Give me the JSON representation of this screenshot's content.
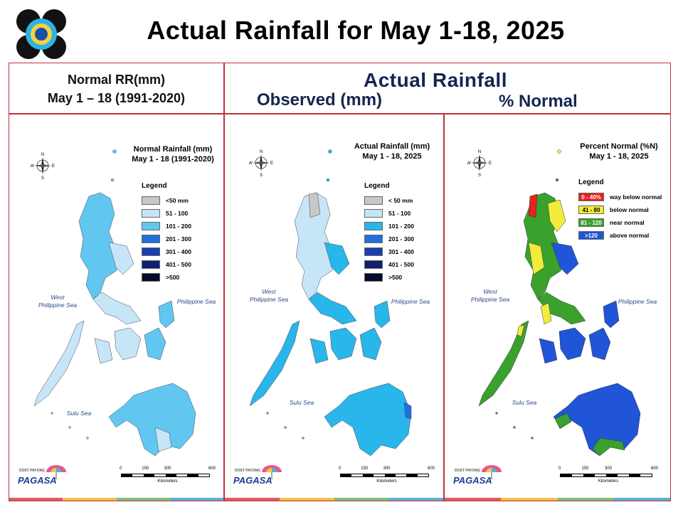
{
  "slide_title": "Actual Rainfall for May 1-18, 2025",
  "header_left": {
    "line1": "Normal RR(mm)",
    "line2": "May 1 – 18 (1991-2020)"
  },
  "header_right": {
    "actual": "Actual Rainfall",
    "observed": "Observed (mm)",
    "percent": "% Normal"
  },
  "panels": [
    {
      "title1": "Normal Rainfall (mm)",
      "title2": "May 1 - 18  (1991-2020)",
      "legend_title": "Legend",
      "legend": [
        {
          "label": "<50 mm",
          "color": "#c8c8c8"
        },
        {
          "label": "51 - 100",
          "color": "#c6e6f8"
        },
        {
          "label": "101 - 200",
          "color": "#62c7f0"
        },
        {
          "label": "201 - 300",
          "color": "#1f6fe0"
        },
        {
          "label": "301 - 400",
          "color": "#1a3fae"
        },
        {
          "label": "401 - 500",
          "color": "#101f70"
        },
        {
          "label": ">500",
          "color": "#060b2a"
        }
      ]
    },
    {
      "title1": "Actual Rainfall (mm)",
      "title2": "May 1 - 18, 2025",
      "legend_title": "Legend",
      "legend": [
        {
          "label": "< 50 mm",
          "color": "#c8c8c8"
        },
        {
          "label": "51 - 100",
          "color": "#c6e6f8"
        },
        {
          "label": "101 - 200",
          "color": "#29b6ea"
        },
        {
          "label": "201 - 300",
          "color": "#1f6fe0"
        },
        {
          "label": "301 - 400",
          "color": "#1a3fae"
        },
        {
          "label": "401 - 500",
          "color": "#101f70"
        },
        {
          "label": ">500",
          "color": "#060b2a"
        }
      ]
    },
    {
      "title1": "Percent Normal (%N)",
      "title2": "May 1 - 18, 2025",
      "legend_title": "Legend",
      "legend": [
        {
          "swatch": "0 - 40%",
          "label": "way below normal",
          "color": "#e8221c"
        },
        {
          "swatch": "41 - 80",
          "label": "below normal",
          "color": "#f2ec3a"
        },
        {
          "swatch": "81 - 120",
          "label": "near normal",
          "color": "#3aa12c"
        },
        {
          "swatch": ">120",
          "label": "above normal",
          "color": "#1f55d6"
        }
      ]
    }
  ],
  "seas": {
    "west": "West\nPhilippine Sea",
    "east": "Philippine Sea",
    "sulu": "Sulu Sea"
  },
  "compass": {
    "n": "N",
    "s": "S",
    "e": "E",
    "w": "W"
  },
  "scale": {
    "ticks": [
      "0",
      "150",
      "300",
      "600"
    ],
    "unit": "Kilometers"
  },
  "brand": {
    "name": "PAGASA",
    "dost": "DOST",
    "sub": "PAYONG"
  },
  "stripe_colors": [
    "#e05a6a",
    "#f0c24a",
    "#7dc17a",
    "#5ab0dc"
  ],
  "map_fill": {
    "p1_main": "#62c7f0",
    "p1_light": "#c6e6f8",
    "p2_main": "#29b6ea",
    "p2_light": "#c6e6f8",
    "p2_grey": "#c8c8c8",
    "p3_blue": "#1f55d6",
    "p3_green": "#3aa12c",
    "p3_yellow": "#f2ec3a",
    "p3_red": "#e8221c"
  }
}
